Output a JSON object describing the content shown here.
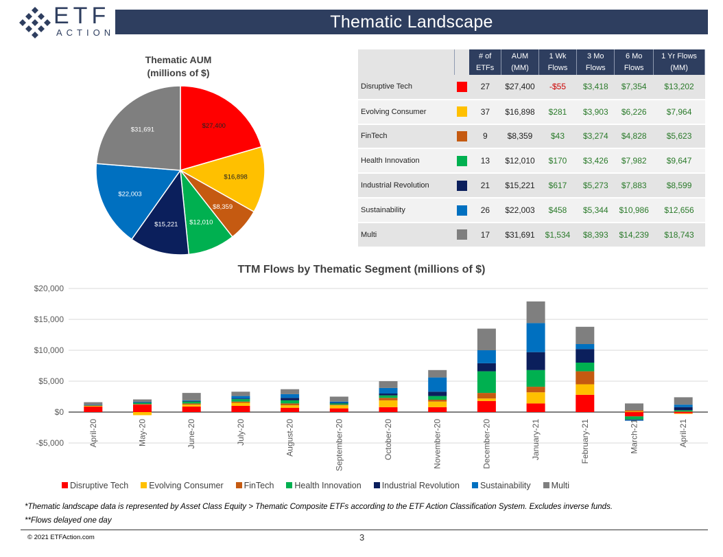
{
  "header": {
    "title": "Thematic Landscape",
    "logo_text": "ETF",
    "logo_sub": "ACTION"
  },
  "colors": {
    "header": "#2e3e5f",
    "Disruptive Tech": "#ff0000",
    "Evolving Consumer": "#ffc000",
    "FinTech": "#c55a11",
    "Health Innovation": "#00b050",
    "Industrial Revolution": "#0b1f5c",
    "Sustainability": "#0070c0",
    "Multi": "#7f7f7f"
  },
  "table": {
    "headers": [
      "# of ETFs",
      "AUM (MM)",
      "1 Wk Flows",
      "3 Mo Flows",
      "6 Mo Flows",
      "1 Yr Flows (MM)"
    ],
    "rows": [
      {
        "segment": "Disruptive Tech",
        "etfs": "27",
        "aum": "$27,400",
        "wk": "-$55",
        "mo3": "$3,418",
        "mo6": "$7,354",
        "yr": "$13,202"
      },
      {
        "segment": "Evolving Consumer",
        "etfs": "37",
        "aum": "$16,898",
        "wk": "$281",
        "mo3": "$3,903",
        "mo6": "$6,226",
        "yr": "$7,964"
      },
      {
        "segment": "FinTech",
        "etfs": "9",
        "aum": "$8,359",
        "wk": "$43",
        "mo3": "$3,274",
        "mo6": "$4,828",
        "yr": "$5,623"
      },
      {
        "segment": "Health Innovation",
        "etfs": "13",
        "aum": "$12,010",
        "wk": "$170",
        "mo3": "$3,426",
        "mo6": "$7,982",
        "yr": "$9,647"
      },
      {
        "segment": "Industrial Revolution",
        "etfs": "21",
        "aum": "$15,221",
        "wk": "$617",
        "mo3": "$5,273",
        "mo6": "$7,883",
        "yr": "$8,599"
      },
      {
        "segment": "Sustainability",
        "etfs": "26",
        "aum": "$22,003",
        "wk": "$458",
        "mo3": "$5,344",
        "mo6": "$10,986",
        "yr": "$12,656"
      },
      {
        "segment": "Multi",
        "etfs": "17",
        "aum": "$31,691",
        "wk": "$1,534",
        "mo3": "$8,393",
        "mo6": "$14,239",
        "yr": "$18,743"
      }
    ]
  },
  "chart_data": [
    {
      "type": "pie",
      "title": "Thematic AUM (millions of $)",
      "title_lines": [
        "Thematic AUM",
        "(millions of $)"
      ],
      "categories": [
        "Disruptive Tech",
        "Evolving Consumer",
        "FinTech",
        "Health Innovation",
        "Industrial Revolution",
        "Sustainability",
        "Multi"
      ],
      "values": [
        27400,
        16898,
        8359,
        12010,
        15221,
        22003,
        31691
      ],
      "labels": [
        "$27,400",
        "$16,898",
        "$8,359",
        "$12,010",
        "$15,221",
        "$22,003",
        "$31,691"
      ]
    },
    {
      "type": "bar",
      "stacked": true,
      "title": "TTM Flows by Thematic Segment (millions of $)",
      "categories": [
        "April-20",
        "May-20",
        "June-20",
        "July-20",
        "August-20",
        "September-20",
        "October-20",
        "November-20",
        "December-20",
        "January-21",
        "February-21",
        "March-21",
        "April-21"
      ],
      "ylim": [
        -5000,
        20000
      ],
      "yticks": [
        20000,
        15000,
        10000,
        5000,
        0,
        -5000
      ],
      "ytick_labels": [
        "$20,000",
        "$15,000",
        "$10,000",
        "$5,000",
        "$0",
        "-$5,000"
      ],
      "grid": true,
      "legend": "bottom",
      "series": [
        {
          "name": "Disruptive Tech",
          "values": [
            900,
            1200,
            900,
            1000,
            700,
            600,
            800,
            800,
            1800,
            1400,
            2800,
            -700,
            -200
          ]
        },
        {
          "name": "Evolving Consumer",
          "values": [
            100,
            -500,
            300,
            500,
            400,
            500,
            1100,
            900,
            400,
            1800,
            1700,
            100,
            -100
          ]
        },
        {
          "name": "FinTech",
          "values": [
            50,
            100,
            200,
            200,
            300,
            100,
            400,
            300,
            900,
            900,
            2100,
            200,
            100
          ]
        },
        {
          "name": "Health Innovation",
          "values": [
            50,
            200,
            300,
            400,
            500,
            200,
            400,
            600,
            3500,
            2700,
            1400,
            -500,
            200
          ]
        },
        {
          "name": "Industrial Revolution",
          "values": [
            50,
            50,
            100,
            100,
            400,
            100,
            300,
            700,
            1300,
            2900,
            2200,
            -100,
            500
          ]
        },
        {
          "name": "Sustainability",
          "values": [
            50,
            100,
            100,
            400,
            600,
            200,
            900,
            2300,
            2100,
            4700,
            800,
            -100,
            400
          ]
        },
        {
          "name": "Multi",
          "values": [
            400,
            400,
            1200,
            700,
            800,
            800,
            1100,
            1200,
            3500,
            3500,
            2800,
            1100,
            1200
          ]
        }
      ]
    }
  ],
  "footnotes": {
    "note1": "*Thematic landscape data is represented by Asset Class Equity > Thematic Composite ETFs according to the ETF Action Classification System.  Excludes inverse funds.",
    "note2": "**Flows delayed one day",
    "copyright": "© 2021 ETFAction.com",
    "page": "3"
  }
}
